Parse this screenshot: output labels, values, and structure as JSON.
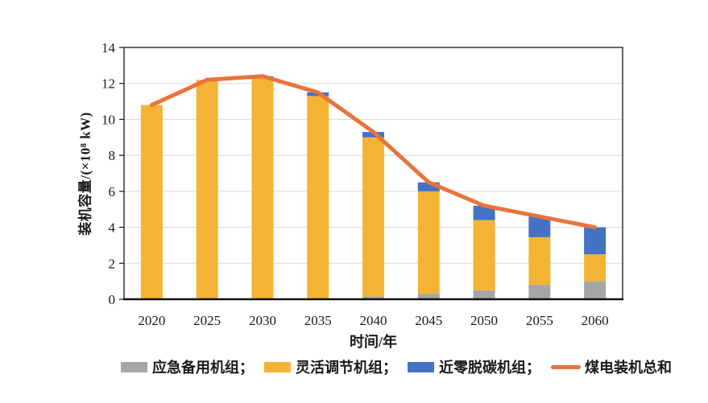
{
  "chart_data": {
    "type": "bar",
    "subtype": "stacked-bars-with-total-line",
    "title": "",
    "xlabel": "时间/年",
    "ylabel": "装机容量/(×10⁸ kW)",
    "categories": [
      "2020",
      "2025",
      "2030",
      "2035",
      "2040",
      "2045",
      "2050",
      "2055",
      "2060"
    ],
    "ylim": [
      0,
      14
    ],
    "yticks": [
      0,
      2,
      4,
      6,
      8,
      10,
      12,
      14
    ],
    "grid": true,
    "legend_position": "bottom",
    "grid_color": "#D9D9D9",
    "axis_color": "#262626",
    "background_color": "#FFFFFF",
    "series": [
      {
        "key": "emergency-backup-units",
        "name": "应急备用机组；",
        "kind": "bar",
        "color": "#A6A6A6",
        "values": [
          0,
          0,
          0,
          0,
          0.15,
          0.3,
          0.5,
          0.8,
          1.0
        ]
      },
      {
        "key": "flexible-regulation-units",
        "name": "灵活调节机组；",
        "kind": "bar",
        "color": "#F5B335",
        "values": [
          10.8,
          12.2,
          12.35,
          11.3,
          8.85,
          5.7,
          3.9,
          2.65,
          1.5
        ]
      },
      {
        "key": "near-zero-decarbonized-units",
        "name": "近零脱碳机组；",
        "kind": "bar",
        "color": "#4472C4",
        "values": [
          0,
          0,
          0.05,
          0.2,
          0.3,
          0.5,
          0.8,
          1.15,
          1.5
        ]
      },
      {
        "key": "coal-power-total",
        "name": "煤电装机总和",
        "kind": "line",
        "color": "#E8743B",
        "values": [
          10.8,
          12.2,
          12.4,
          11.5,
          9.3,
          6.5,
          5.2,
          4.6,
          4.0
        ]
      }
    ]
  }
}
